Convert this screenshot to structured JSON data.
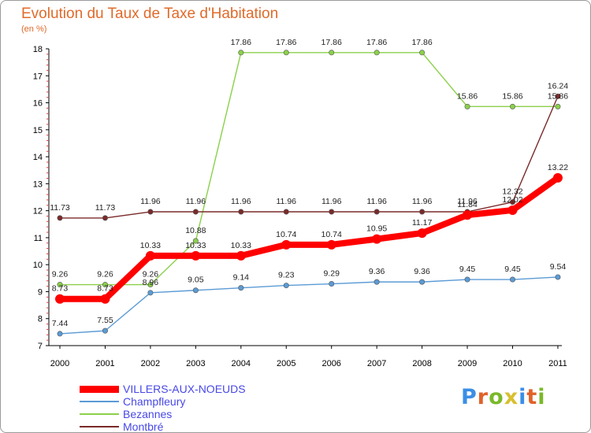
{
  "chart_title": "Evolution du Taux de Taxe d'Habitation",
  "unit_label": "(en %)",
  "brand": {
    "text": "Proxiti",
    "letters": [
      "P",
      "r",
      "o",
      "x",
      "i",
      "t",
      "i"
    ],
    "letter_colors": [
      "#3a8ee6",
      "#e0622a",
      "#7ab82a",
      "#d8c030",
      "#3a8ee6",
      "#e0622a",
      "#7ab82a"
    ]
  },
  "chart_data": {
    "type": "line",
    "title": "Evolution du Taux de Taxe d'Habitation",
    "ylabel": "(en %)",
    "xlabel": "",
    "ylim": [
      7,
      18
    ],
    "yticks": [
      7,
      8,
      9,
      10,
      11,
      12,
      13,
      14,
      15,
      16,
      17,
      18
    ],
    "ytick_labels": [
      "7",
      "8",
      "9",
      "10",
      "11",
      "12",
      "13",
      "14",
      "15",
      "16",
      "17",
      "18"
    ],
    "x": [
      "2000",
      "2001",
      "2002",
      "2003",
      "2004",
      "2005",
      "2006",
      "2007",
      "2008",
      "2009",
      "2010",
      "2011"
    ],
    "grid": false,
    "legend_position": "bottom-left",
    "series": [
      {
        "name": "VILLERS-AUX-NOEUDS",
        "color": "#ff0000",
        "values": [
          8.73,
          8.73,
          10.33,
          10.33,
          10.33,
          10.74,
          10.74,
          10.95,
          11.17,
          11.84,
          12.02,
          13.22
        ],
        "labels": [
          "8.73",
          "8.73",
          "10.33",
          "10.33",
          "10.33",
          "10.74",
          "10.74",
          "10.95",
          "11.17",
          "11.84",
          "12.02",
          "13.22"
        ],
        "emphasis": true
      },
      {
        "name": "Champfleury",
        "color": "#5b9bd5",
        "values": [
          7.44,
          7.55,
          8.96,
          9.05,
          9.14,
          9.23,
          9.29,
          9.36,
          9.36,
          9.45,
          9.45,
          9.54
        ],
        "labels": [
          "7.44",
          "7.55",
          "8.96",
          "9.05",
          "9.14",
          "9.23",
          "9.29",
          "9.36",
          "9.36",
          "9.45",
          "9.45",
          "9.54"
        ]
      },
      {
        "name": "Bezannes",
        "color": "#8bd04b",
        "values": [
          9.26,
          9.26,
          9.26,
          10.88,
          17.86,
          17.86,
          17.86,
          17.86,
          17.86,
          15.86,
          15.86,
          15.86
        ],
        "labels": [
          "9.26",
          "9.26",
          "9.26",
          "10.88",
          "17.86",
          "17.86",
          "17.86",
          "17.86",
          "17.86",
          "15.86",
          "15.86",
          "15.86"
        ]
      },
      {
        "name": "Montbré",
        "color": "#7a2a2a",
        "values": [
          11.73,
          11.73,
          11.96,
          11.96,
          11.96,
          11.96,
          11.96,
          11.96,
          11.96,
          11.96,
          12.32,
          16.24
        ],
        "labels": [
          "11.73",
          "11.73",
          "11.96",
          "11.96",
          "11.96",
          "11.96",
          "11.96",
          "11.96",
          "11.96",
          "11.96",
          "12.32",
          "16.24"
        ]
      }
    ]
  }
}
